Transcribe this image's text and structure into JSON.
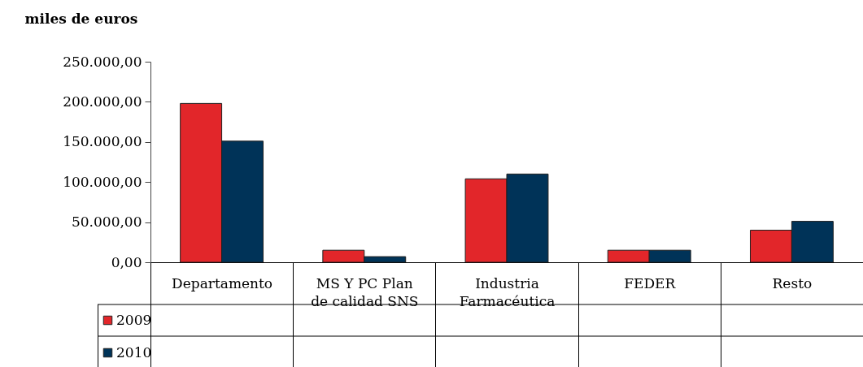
{
  "chart_data": {
    "type": "bar",
    "ylabel": "miles de euros",
    "categories": [
      "Departamento",
      "MS Y PC Plan de calidad SNS",
      "Industria Farmacéutica",
      "FEDER",
      "Resto"
    ],
    "series": [
      {
        "name": "2009",
        "color": "#e2262a",
        "values": [
          198000,
          15000,
          104000,
          15000,
          40000
        ]
      },
      {
        "name": "2010",
        "color": "#003358",
        "values": [
          151000,
          7000,
          110000,
          15000,
          51000
        ]
      }
    ],
    "ylim": [
      0,
      250000
    ],
    "yticks": [
      {
        "value": 0,
        "label": "0,00"
      },
      {
        "value": 50000,
        "label": "50.000,00"
      },
      {
        "value": 100000,
        "label": "100.000,00"
      },
      {
        "value": 150000,
        "label": "150.000,00"
      },
      {
        "value": 200000,
        "label": "200.000,00"
      },
      {
        "value": 250000,
        "label": "250.000,00"
      }
    ],
    "legend": "bottom left"
  }
}
